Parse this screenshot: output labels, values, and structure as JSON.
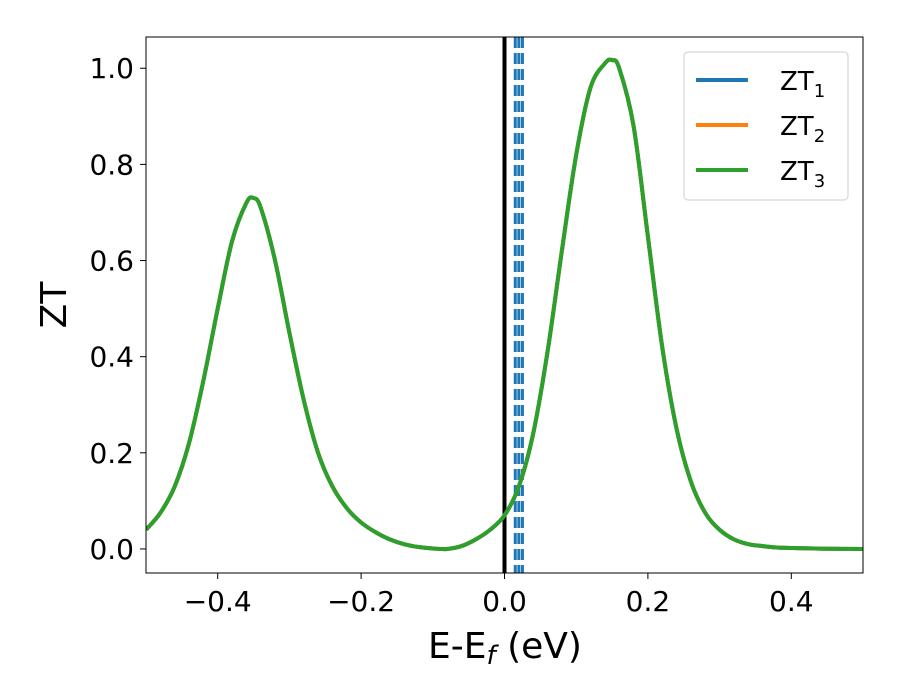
{
  "chart_data": {
    "type": "line",
    "xlabel": "E-E",
    "xlabel_sub": "f",
    "xlabel_unit": " (eV)",
    "ylabel": "ZT",
    "xlim": [
      -0.5,
      0.5
    ],
    "ylim": [
      -0.05,
      1.065
    ],
    "x_ticks": [
      -0.4,
      -0.2,
      0.0,
      0.2,
      0.4
    ],
    "x_tick_labels": [
      "−0.4",
      "−0.2",
      "0.0",
      "0.2",
      "0.4"
    ],
    "y_ticks": [
      0.0,
      0.2,
      0.4,
      0.6,
      0.8,
      1.0
    ],
    "y_tick_labels": [
      "0.0",
      "0.2",
      "0.4",
      "0.6",
      "0.8",
      "1.0"
    ],
    "legend_position": "top-right",
    "grid": false,
    "vertical_lines": [
      {
        "x": 0.0,
        "style": "solid",
        "color": "#000000"
      },
      {
        "x": 0.015,
        "style": "dashed",
        "color": "#1f77b4"
      },
      {
        "x": 0.02,
        "style": "dashed",
        "color": "#1f77b4"
      },
      {
        "x": 0.025,
        "style": "dashed",
        "color": "#1f77b4"
      }
    ],
    "x": [
      -0.5,
      -0.48,
      -0.46,
      -0.44,
      -0.42,
      -0.4,
      -0.38,
      -0.36,
      -0.35,
      -0.34,
      -0.32,
      -0.3,
      -0.28,
      -0.26,
      -0.24,
      -0.22,
      -0.2,
      -0.18,
      -0.16,
      -0.14,
      -0.12,
      -0.1,
      -0.08,
      -0.06,
      -0.04,
      -0.02,
      0.0,
      0.02,
      0.04,
      0.06,
      0.08,
      0.1,
      0.12,
      0.14,
      0.15,
      0.16,
      0.18,
      0.2,
      0.22,
      0.24,
      0.26,
      0.28,
      0.3,
      0.32,
      0.34,
      0.36,
      0.38,
      0.4,
      0.45,
      0.5
    ],
    "series": [
      {
        "name": "ZT",
        "name_sub": "1",
        "color": "#1f77b4",
        "values": [
          0.04,
          0.075,
          0.13,
          0.22,
          0.35,
          0.5,
          0.64,
          0.72,
          0.73,
          0.71,
          0.6,
          0.45,
          0.31,
          0.2,
          0.13,
          0.085,
          0.055,
          0.035,
          0.02,
          0.01,
          0.004,
          0.001,
          0.0,
          0.006,
          0.02,
          0.04,
          0.07,
          0.13,
          0.24,
          0.41,
          0.62,
          0.82,
          0.96,
          1.01,
          1.017,
          1.0,
          0.88,
          0.65,
          0.42,
          0.25,
          0.14,
          0.075,
          0.04,
          0.02,
          0.01,
          0.006,
          0.003,
          0.002,
          0.0005,
          0.0
        ]
      },
      {
        "name": "ZT",
        "name_sub": "2",
        "color": "#ff7f0e",
        "values": [
          0.04,
          0.075,
          0.13,
          0.22,
          0.35,
          0.5,
          0.64,
          0.72,
          0.73,
          0.71,
          0.6,
          0.45,
          0.31,
          0.2,
          0.13,
          0.085,
          0.055,
          0.035,
          0.02,
          0.01,
          0.004,
          0.001,
          0.0,
          0.006,
          0.02,
          0.04,
          0.07,
          0.13,
          0.24,
          0.41,
          0.62,
          0.82,
          0.96,
          1.01,
          1.017,
          1.0,
          0.88,
          0.65,
          0.42,
          0.25,
          0.14,
          0.075,
          0.04,
          0.02,
          0.01,
          0.006,
          0.003,
          0.002,
          0.0005,
          0.0
        ]
      },
      {
        "name": "ZT",
        "name_sub": "3",
        "color": "#2ca02c",
        "values": [
          0.04,
          0.075,
          0.13,
          0.22,
          0.35,
          0.5,
          0.64,
          0.72,
          0.73,
          0.71,
          0.6,
          0.45,
          0.31,
          0.2,
          0.13,
          0.085,
          0.055,
          0.035,
          0.02,
          0.01,
          0.004,
          0.001,
          0.0,
          0.006,
          0.02,
          0.04,
          0.07,
          0.13,
          0.24,
          0.41,
          0.62,
          0.82,
          0.96,
          1.01,
          1.017,
          1.0,
          0.88,
          0.65,
          0.42,
          0.25,
          0.14,
          0.075,
          0.04,
          0.02,
          0.01,
          0.006,
          0.003,
          0.002,
          0.0005,
          0.0
        ]
      }
    ]
  }
}
